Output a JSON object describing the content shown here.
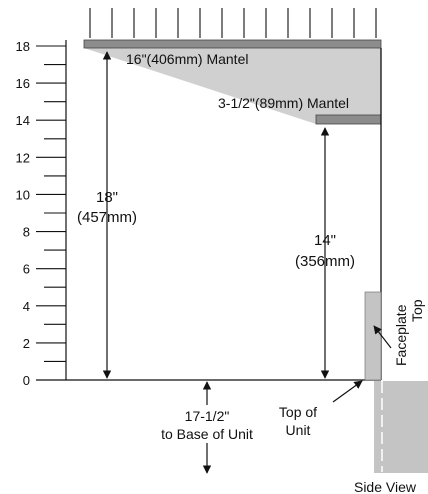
{
  "scale": {
    "ticks": [
      "0",
      "2",
      "4",
      "6",
      "8",
      "10",
      "12",
      "14",
      "16",
      "18"
    ],
    "unit_inches_per_major": 2
  },
  "mantels": {
    "large": {
      "label": "16\"(406mm) Mantel"
    },
    "small": {
      "label": "3-1/2\"(89mm) Mantel"
    }
  },
  "dimensions": {
    "large_clearance": {
      "line1": "18\"",
      "line2": "(457mm)"
    },
    "small_clearance": {
      "line1": "14\"",
      "line2": "(356mm)"
    },
    "below_base": {
      "line1": "17-1/2\"",
      "line2": "to Base of Unit"
    }
  },
  "callouts": {
    "top_of_unit": {
      "line1": "Top of",
      "line2": "Unit"
    },
    "faceplate_top": {
      "line1": "Faceplate",
      "line2": "Top"
    }
  },
  "footer": {
    "view_label": "Side View"
  },
  "colors": {
    "mantel": "#8c8c8c",
    "shade": "#cfcfcf",
    "unit": "#c4c4c4",
    "line": "#111111"
  }
}
